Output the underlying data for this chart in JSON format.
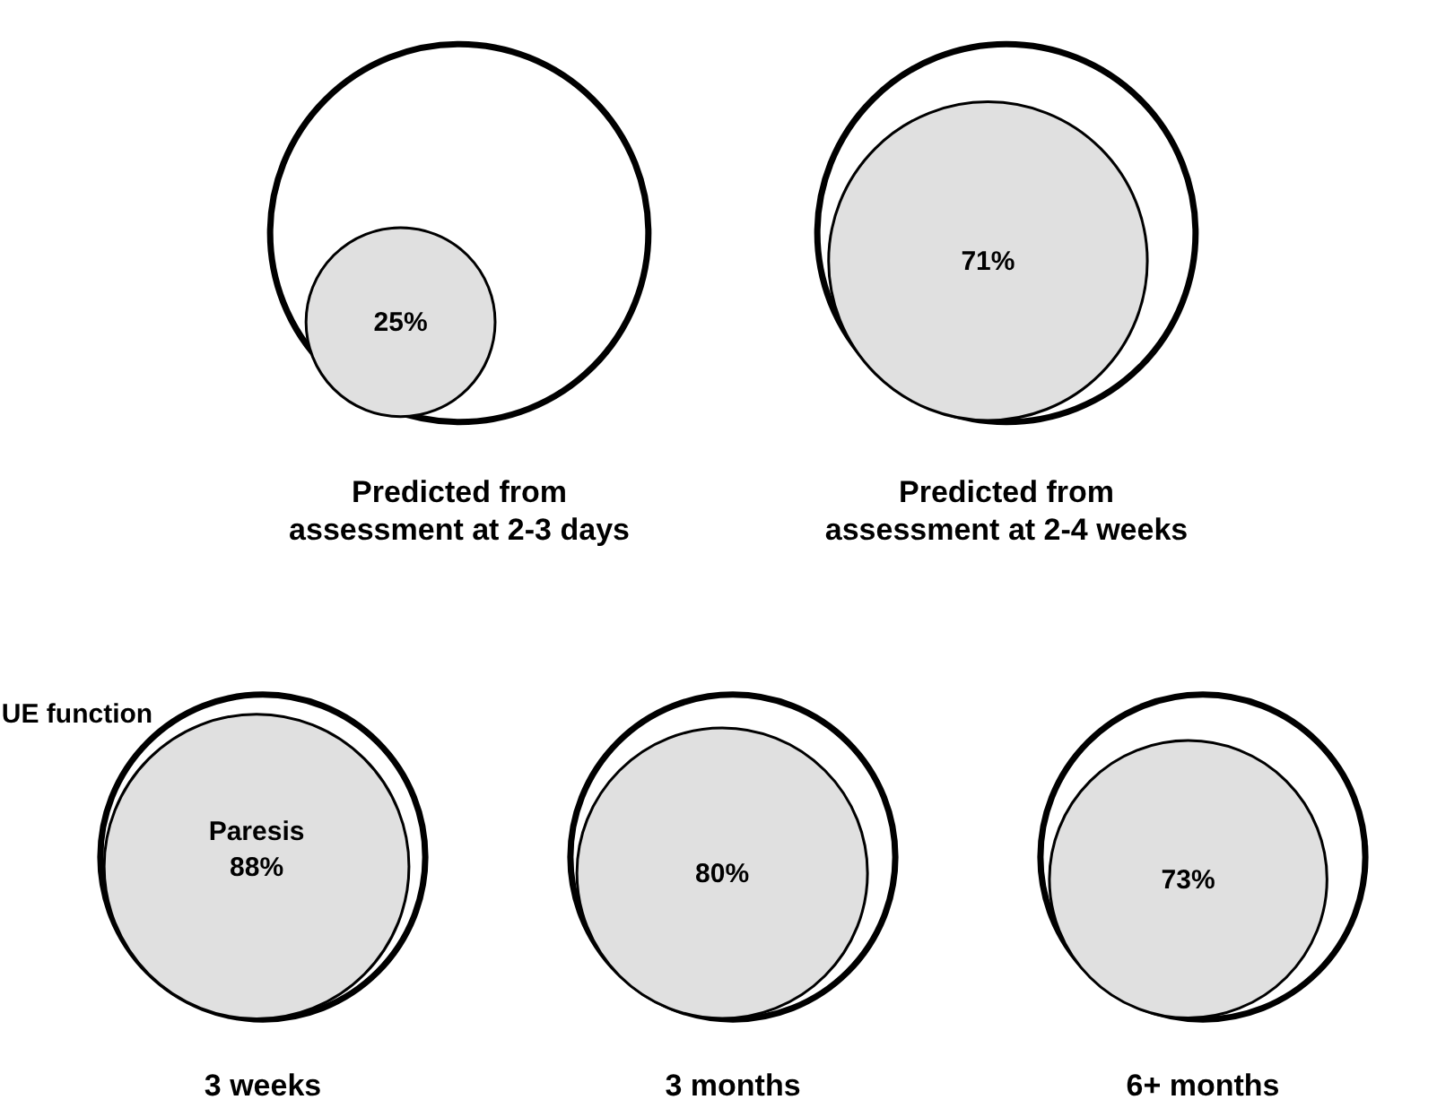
{
  "chart_data": [
    {
      "type": "other",
      "categories": [
        "Predicted from assessment at 2-3 days",
        "Predicted from assessment at 2-4 weeks"
      ],
      "values": [
        25,
        71
      ],
      "value_labels": [
        "25%",
        "71%"
      ],
      "color": "#e0e0e0"
    },
    {
      "type": "other",
      "categories": [
        "3 weeks",
        "3 months",
        "6+ months"
      ],
      "values": [
        88,
        80,
        73
      ],
      "value_labels": [
        "88%",
        "80%",
        "73%"
      ],
      "color": "#e0e0e0",
      "annotations": [
        "UE function",
        {
          "text": "Paresis",
          "x": "3 weeks"
        }
      ]
    }
  ]
}
